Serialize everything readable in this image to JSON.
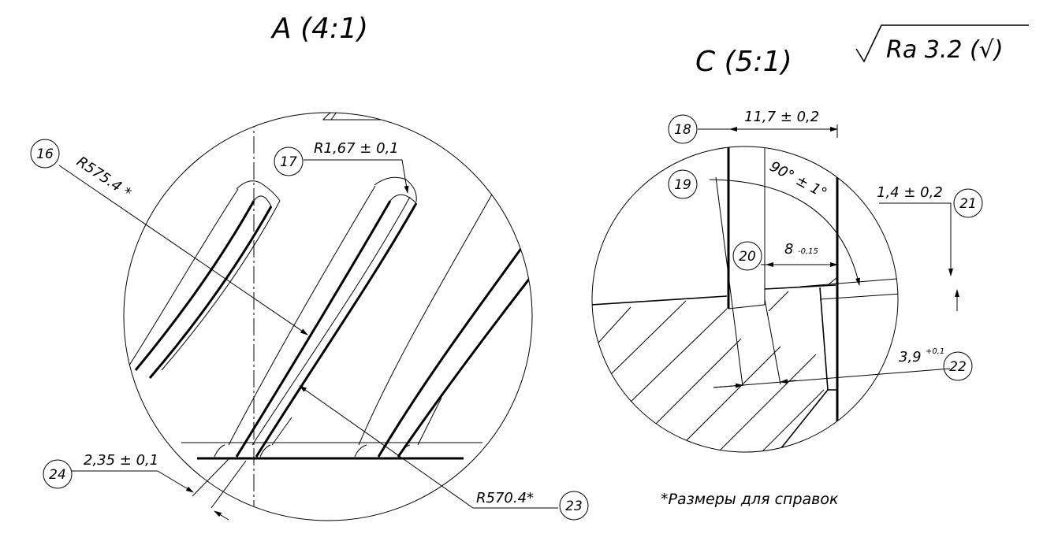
{
  "views": {
    "a": {
      "title": "A (4:1)"
    },
    "c": {
      "title": "C (5:1)"
    }
  },
  "surface_finish": {
    "text": "Ra 3.2 (√)"
  },
  "balloons": {
    "b16": "16",
    "b17": "17",
    "b18": "18",
    "b19": "19",
    "b20": "20",
    "b21": "21",
    "b22": "22",
    "b23": "23",
    "b24": "24"
  },
  "dimensions": {
    "r575": "R575.4 *",
    "r1_67": "R1,67 ± 0,1",
    "r570": "R570.4*",
    "d2_35": "2,35 ± 0,1",
    "d11_7": "11,7 ± 0,2",
    "ang90": "90° ± 1°",
    "d8": "8",
    "d8_tol": "-0,15",
    "d1_4": "1,4 ± 0,2",
    "d3_9": "3,9",
    "d3_9_tol": "+0,1"
  },
  "note": {
    "text": "*Размеры для справок"
  }
}
